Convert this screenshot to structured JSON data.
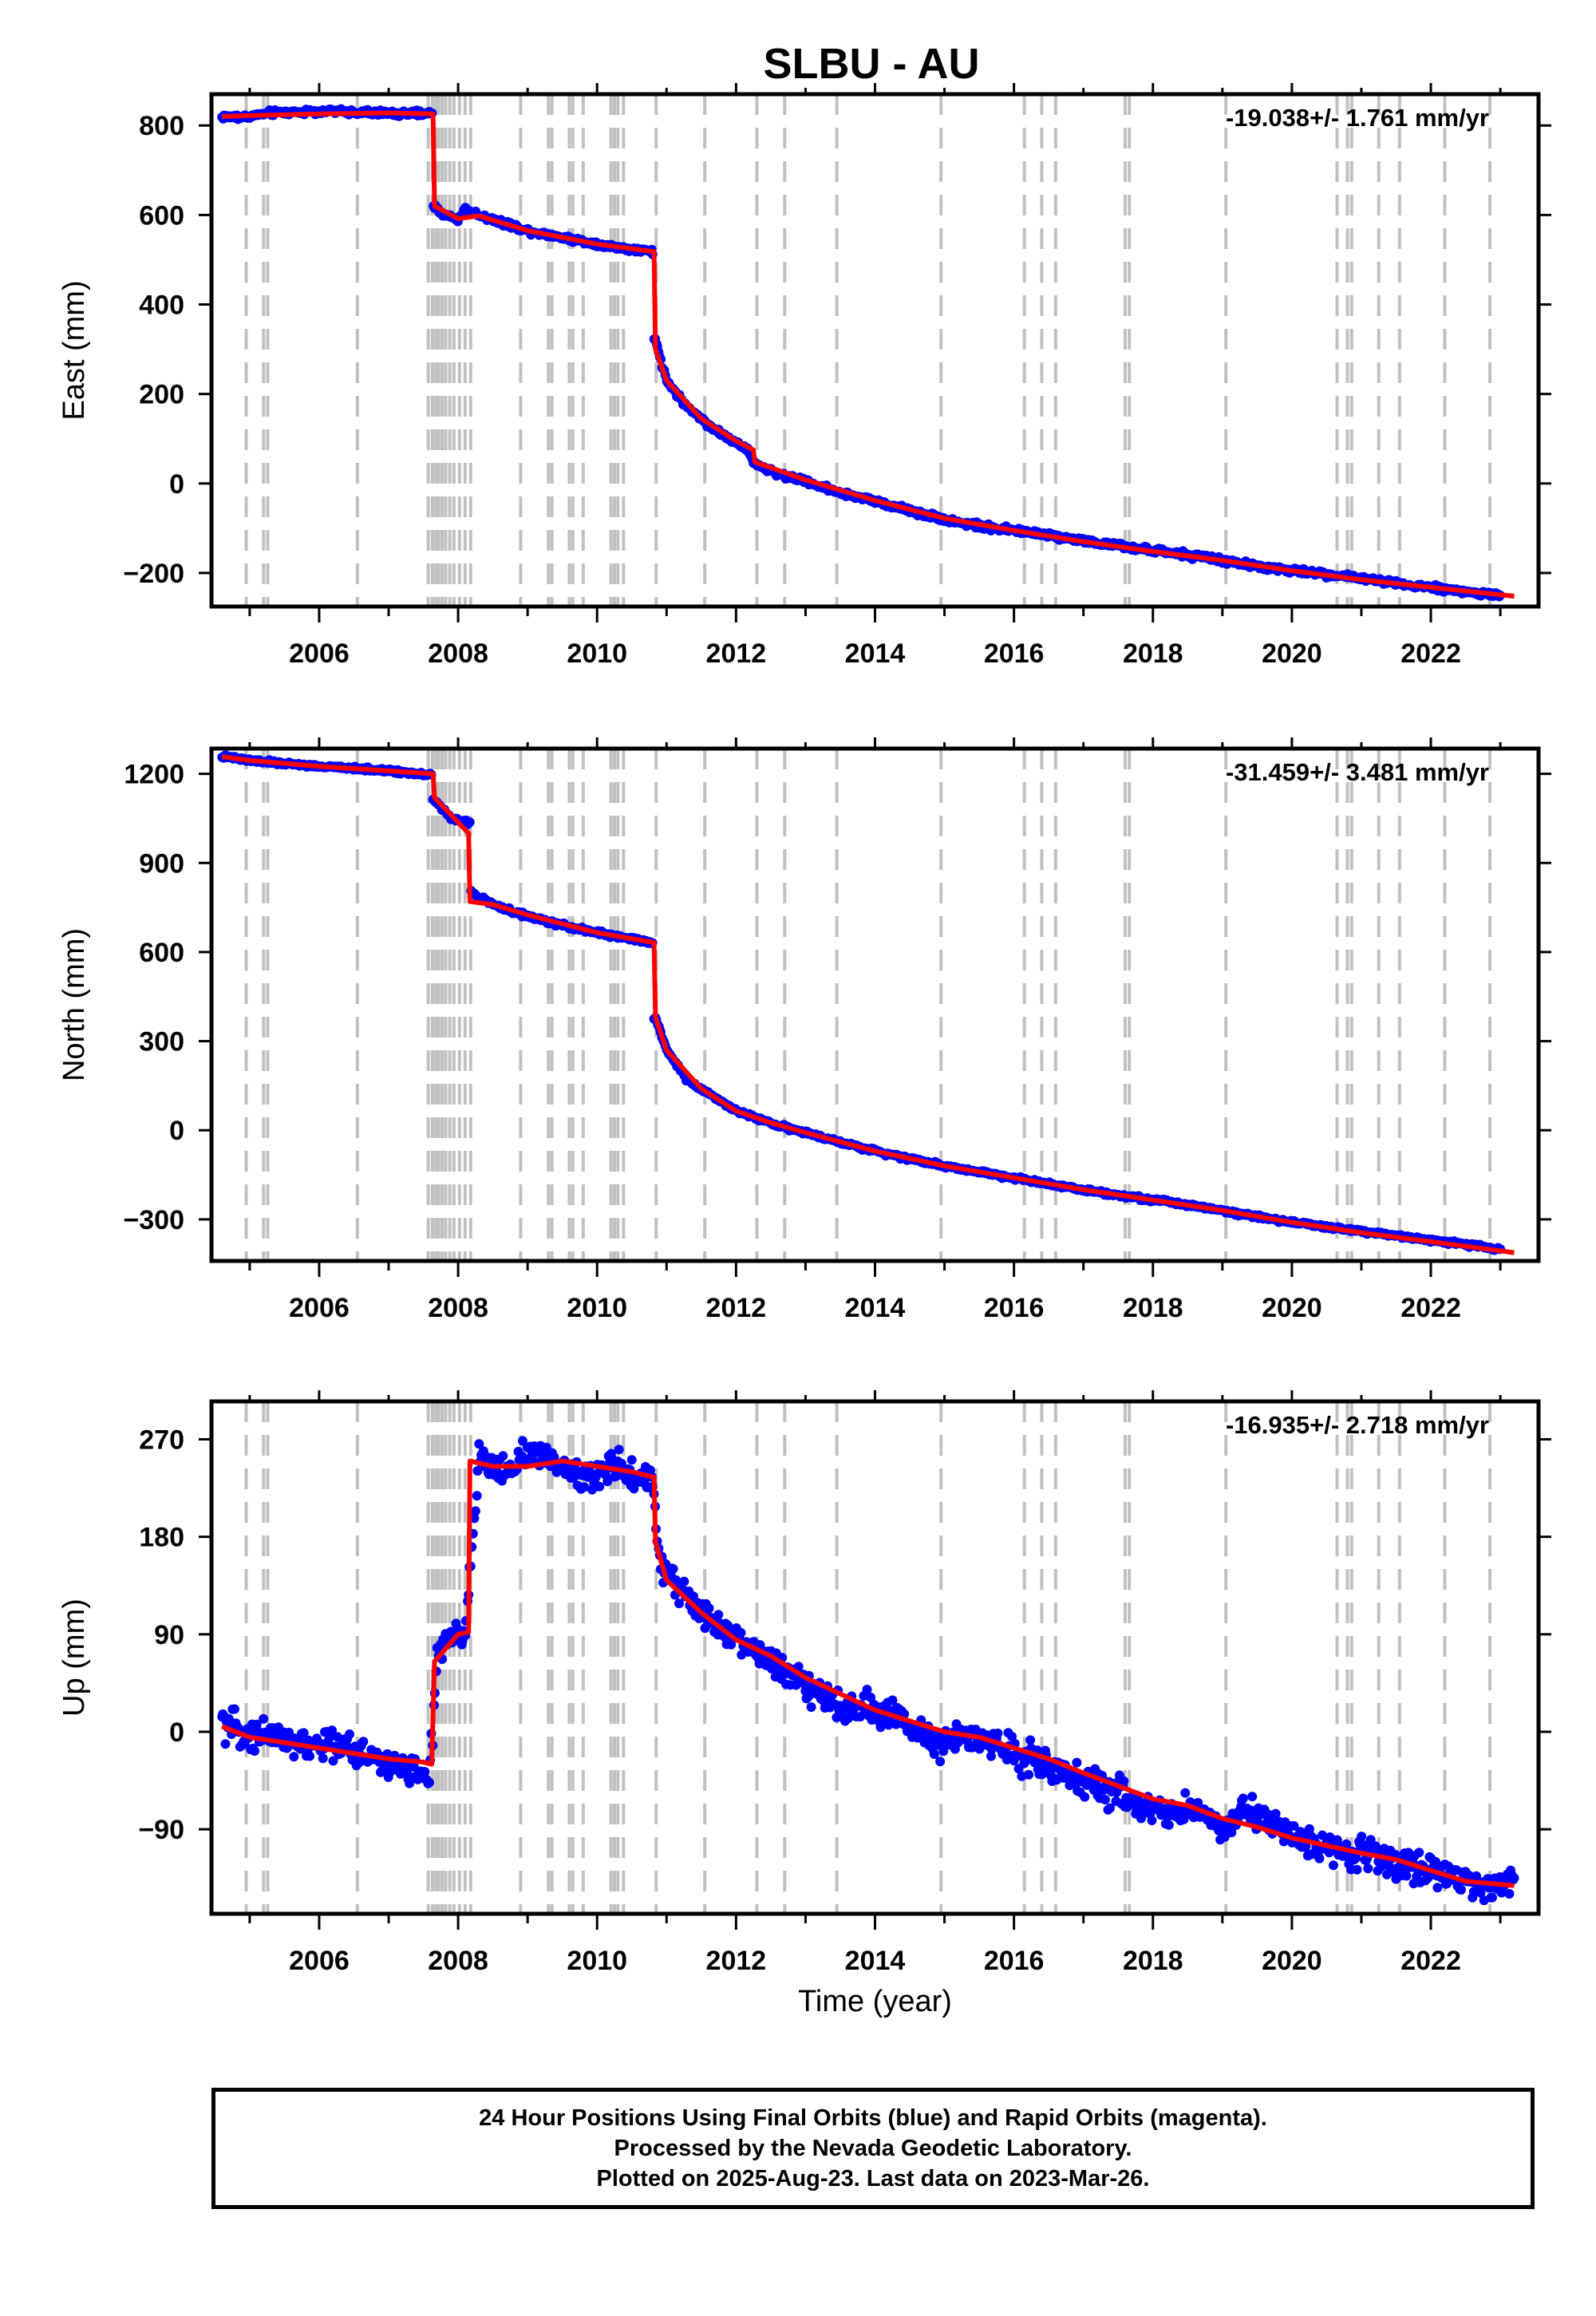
{
  "chart_data": [
    {
      "type": "scatter",
      "title": "SLBU - AU",
      "ylabel": "East (mm)",
      "xlabel": "",
      "xlim": [
        2004.45,
        2023.55
      ],
      "ylim": [
        -275,
        870
      ],
      "yticks": [
        -200,
        0,
        200,
        400,
        600,
        800
      ],
      "ytick_labels": [
        "−200",
        "0",
        "200",
        "400",
        "600",
        "800"
      ],
      "xticks": [
        2006,
        2008,
        2010,
        2012,
        2014,
        2016,
        2018,
        2020,
        2022
      ],
      "xtick_labels": [
        "2006",
        "2008",
        "2010",
        "2012",
        "2014",
        "2016",
        "2018",
        "2020",
        "2022"
      ],
      "annotation": "-19.038+/- 1.761 mm/yr",
      "series": [
        {
          "color": "#0000ff",
          "x": [
            2004.6,
            2004.9,
            2005.3,
            2005.7,
            2006.1,
            2006.5,
            2006.9,
            2007.3,
            2007.62,
            2007.66,
            2007.8,
            2008.0,
            2008.1,
            2008.3,
            2008.6,
            2009.0,
            2009.5,
            2010.0,
            2010.5,
            2010.8,
            2010.84,
            2011.0,
            2011.3,
            2011.7,
            2012.0,
            2012.2,
            2012.25,
            2012.6,
            2013.0,
            2013.5,
            2014.0,
            2014.5,
            2015.0,
            2015.5,
            2016.0,
            2016.5,
            2017.0,
            2017.5,
            2018.0,
            2018.5,
            2019.0,
            2019.5,
            2020.0,
            2020.5,
            2021.0,
            2021.5,
            2022.0,
            2022.5,
            2023.0
          ],
          "y": [
            820,
            818,
            828,
            830,
            832,
            830,
            828,
            826,
            828,
            620,
            600,
            590,
            612,
            600,
            585,
            565,
            550,
            535,
            522,
            518,
            320,
            230,
            170,
            120,
            90,
            70,
            45,
            22,
            5,
            -20,
            -40,
            -60,
            -80,
            -95,
            -105,
            -115,
            -128,
            -140,
            -150,
            -160,
            -172,
            -185,
            -195,
            -203,
            -212,
            -222,
            -232,
            -242,
            -250
          ]
        },
        {
          "color": "#ff0000",
          "x": [
            2004.6,
            2005.0,
            2006.0,
            2007.0,
            2007.64,
            2007.66,
            2008.0,
            2008.3,
            2009.0,
            2010.0,
            2010.82,
            2010.84,
            2011.0,
            2011.5,
            2012.0,
            2012.25,
            2012.27,
            2013.0,
            2014.0,
            2015.0,
            2016.0,
            2017.0,
            2018.0,
            2019.0,
            2020.0,
            2021.0,
            2022.0,
            2023.2
          ],
          "y": [
            820,
            822,
            826,
            828,
            826,
            620,
            592,
            598,
            565,
            535,
            518,
            300,
            230,
            145,
            95,
            75,
            48,
            8,
            -38,
            -78,
            -105,
            -130,
            -152,
            -172,
            -195,
            -215,
            -232,
            -252
          ]
        }
      ]
    },
    {
      "type": "scatter",
      "title": "",
      "ylabel": "North (mm)",
      "xlabel": "",
      "xlim": [
        2004.45,
        2023.55
      ],
      "ylim": [
        -440,
        1285
      ],
      "yticks": [
        -300,
        0,
        300,
        600,
        900,
        1200
      ],
      "ytick_labels": [
        "−300",
        "0",
        "300",
        "600",
        "900",
        "1200"
      ],
      "xticks": [
        2006,
        2008,
        2010,
        2012,
        2014,
        2016,
        2018,
        2020,
        2022
      ],
      "xtick_labels": [
        "2006",
        "2008",
        "2010",
        "2012",
        "2014",
        "2016",
        "2018",
        "2020",
        "2022"
      ],
      "annotation": "-31.459+/- 3.481 mm/yr",
      "series": [
        {
          "color": "#0000ff",
          "x": [
            2004.6,
            2005.0,
            2005.5,
            2006.0,
            2006.5,
            2007.0,
            2007.5,
            2007.62,
            2007.66,
            2007.9,
            2008.15,
            2008.2,
            2008.5,
            2009.0,
            2009.5,
            2010.0,
            2010.5,
            2010.8,
            2010.84,
            2011.0,
            2011.3,
            2011.7,
            2012.0,
            2012.5,
            2013.0,
            2013.5,
            2014.0,
            2014.5,
            2015.0,
            2015.5,
            2016.0,
            2016.5,
            2017.0,
            2017.5,
            2018.0,
            2018.5,
            2019.0,
            2019.5,
            2020.0,
            2020.5,
            2021.0,
            2021.5,
            2022.0,
            2022.5,
            2023.0
          ],
          "y": [
            1258,
            1245,
            1235,
            1225,
            1218,
            1210,
            1200,
            1200,
            1110,
            1050,
            1035,
            800,
            760,
            720,
            690,
            665,
            645,
            630,
            380,
            270,
            170,
            110,
            65,
            25,
            -10,
            -40,
            -70,
            -95,
            -120,
            -140,
            -160,
            -180,
            -200,
            -218,
            -235,
            -250,
            -270,
            -290,
            -310,
            -325,
            -340,
            -355,
            -370,
            -385,
            -400
          ]
        },
        {
          "color": "#ff0000",
          "x": [
            2004.6,
            2005.0,
            2006.0,
            2007.0,
            2007.64,
            2007.66,
            2008.15,
            2008.17,
            2008.5,
            2009.0,
            2010.0,
            2010.82,
            2010.84,
            2011.0,
            2011.5,
            2012.0,
            2012.5,
            2013.0,
            2014.0,
            2015.0,
            2016.0,
            2017.0,
            2018.0,
            2019.0,
            2020.0,
            2021.0,
            2022.0,
            2023.2
          ],
          "y": [
            1258,
            1245,
            1225,
            1210,
            1200,
            1120,
            1000,
            770,
            760,
            725,
            665,
            632,
            380,
            270,
            140,
            65,
            25,
            -8,
            -70,
            -120,
            -160,
            -200,
            -235,
            -270,
            -310,
            -345,
            -375,
            -412
          ]
        }
      ]
    },
    {
      "type": "scatter",
      "title": "",
      "ylabel": "Up (mm)",
      "xlabel": "Time (year)",
      "xlim": [
        2004.45,
        2023.55
      ],
      "ylim": [
        -168,
        305
      ],
      "yticks": [
        -90,
        0,
        90,
        180,
        270
      ],
      "ytick_labels": [
        "−90",
        "0",
        "90",
        "180",
        "270"
      ],
      "xticks": [
        2006,
        2008,
        2010,
        2012,
        2014,
        2016,
        2018,
        2020,
        2022
      ],
      "xtick_labels": [
        "2006",
        "2008",
        "2010",
        "2012",
        "2014",
        "2016",
        "2018",
        "2020",
        "2022"
      ],
      "annotation": "-16.935+/- 2.718 mm/yr",
      "series": [
        {
          "color": "#0000ff",
          "x": [
            2004.6,
            2004.8,
            2005.0,
            2005.3,
            2005.6,
            2005.9,
            2006.2,
            2006.5,
            2006.8,
            2007.0,
            2007.5,
            2007.6,
            2007.7,
            2007.9,
            2008.1,
            2008.3,
            2008.5,
            2008.8,
            2009.0,
            2009.3,
            2009.6,
            2009.9,
            2010.2,
            2010.5,
            2010.8,
            2010.9,
            2011.2,
            2011.5,
            2011.8,
            2012.1,
            2012.4,
            2012.7,
            2013.0,
            2013.3,
            2013.6,
            2013.9,
            2014.2,
            2014.5,
            2014.8,
            2015.3,
            2015.8,
            2016.3,
            2016.6,
            2017.0,
            2017.3,
            2017.6,
            2017.9,
            2018.2,
            2018.5,
            2018.8,
            2019.1,
            2019.3,
            2019.6,
            2019.9,
            2020.2,
            2021.3,
            2021.6,
            2021.9,
            2022.2,
            2022.5,
            2022.8,
            2023.2
          ],
          "y": [
            8,
            2,
            -5,
            0,
            -10,
            -15,
            -10,
            -18,
            -22,
            -30,
            -40,
            -35,
            70,
            85,
            90,
            255,
            240,
            245,
            260,
            250,
            245,
            235,
            245,
            240,
            230,
            160,
            130,
            110,
            95,
            80,
            70,
            60,
            45,
            30,
            20,
            25,
            15,
            5,
            -10,
            -5,
            -15,
            -25,
            -35,
            -45,
            -55,
            -60,
            -70,
            -75,
            -70,
            -80,
            -90,
            -70,
            -80,
            -90,
            -105,
            -115,
            -125,
            -125,
            -130,
            -135,
            -145,
            -135
          ]
        },
        {
          "color": "#ff0000",
          "x": [
            2004.6,
            2005.0,
            2005.5,
            2006.0,
            2006.5,
            2007.0,
            2007.5,
            2007.62,
            2007.66,
            2008.0,
            2008.15,
            2008.17,
            2008.5,
            2009.0,
            2009.5,
            2010.0,
            2010.5,
            2010.82,
            2010.84,
            2011.0,
            2011.5,
            2012.0,
            2012.5,
            2013.0,
            2013.5,
            2014.0,
            2014.5,
            2015.0,
            2015.5,
            2016.0,
            2016.5,
            2017.0,
            2017.5,
            2018.0,
            2018.5,
            2019.0,
            2019.5,
            2020.0,
            2020.5,
            2021.0,
            2021.5,
            2022.0,
            2022.5,
            2023.2
          ],
          "y": [
            5,
            -5,
            -10,
            -15,
            -20,
            -25,
            -28,
            -30,
            65,
            90,
            92,
            250,
            245,
            245,
            250,
            245,
            240,
            235,
            175,
            140,
            110,
            85,
            70,
            50,
            35,
            20,
            10,
            0,
            -5,
            -15,
            -25,
            -38,
            -50,
            -62,
            -68,
            -80,
            -88,
            -98,
            -105,
            -112,
            -118,
            -128,
            -138,
            -142
          ]
        }
      ]
    }
  ],
  "event_lines": {
    "color": "#c0c0c0",
    "dates": [
      2004.95,
      2005.2,
      2005.26,
      2006.55,
      2007.57,
      2007.63,
      2007.68,
      2007.72,
      2007.77,
      2007.82,
      2007.88,
      2007.94,
      2008.02,
      2008.1,
      2008.18,
      2008.9,
      2009.3,
      2009.35,
      2009.6,
      2009.65,
      2009.8,
      2010.2,
      2010.25,
      2010.3,
      2010.38,
      2010.85,
      2011.55,
      2012.3,
      2012.7,
      2013.45,
      2014.95,
      2016.15,
      2016.4,
      2016.6,
      2017.6,
      2017.66,
      2019.05,
      2020.65,
      2020.8,
      2020.86,
      2021.25,
      2021.55,
      2022.2,
      2022.85
    ]
  },
  "caption": {
    "line1": "24 Hour Positions Using Final Orbits (blue) and Rapid Orbits (magenta).",
    "line2": "Processed by the Nevada Geodetic Laboratory.",
    "line3": "Plotted on 2025-Aug-23. Last data on 2023-Mar-26."
  }
}
